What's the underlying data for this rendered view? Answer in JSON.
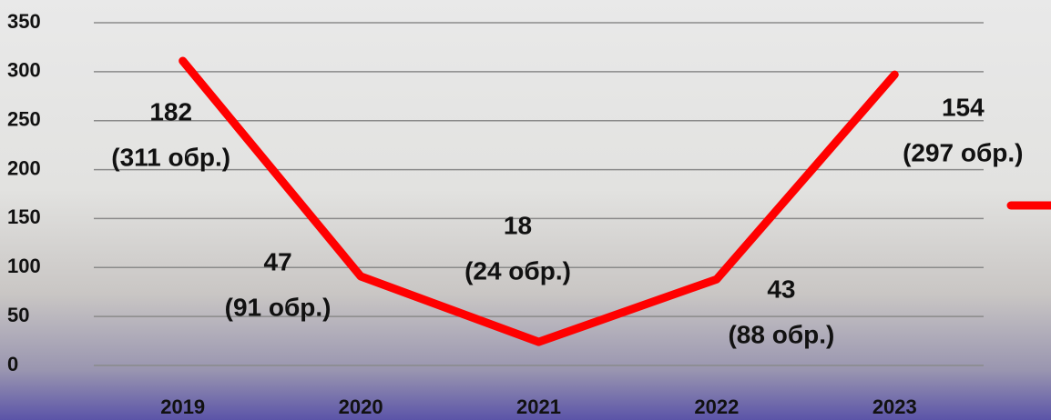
{
  "chart_data": {
    "type": "line",
    "categories": [
      "2019",
      "2020",
      "2021",
      "2022",
      "2023"
    ],
    "series": [
      {
        "color": "#ff0000",
        "values": [
          311,
          91,
          24,
          88,
          297
        ],
        "value_labels": [
          "(311 обр.)",
          "(91 обр.)",
          "(24 обр.)",
          "(88 обр.)",
          "(297 обр.)"
        ]
      }
    ],
    "annotations": [
      "182",
      "47",
      "18",
      "43",
      "154"
    ],
    "ylim": [
      0,
      350
    ],
    "yticks": [
      0,
      50,
      100,
      150,
      200,
      250,
      300,
      350
    ],
    "grid": true
  }
}
